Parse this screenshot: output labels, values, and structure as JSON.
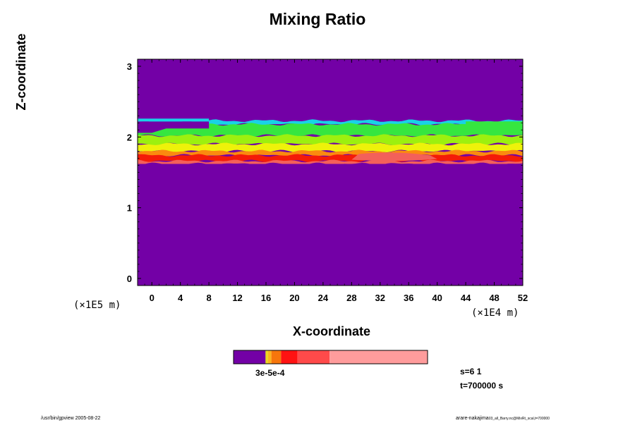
{
  "chart_data": {
    "type": "heatmap",
    "title": "Mixing Ratio",
    "xlabel": "X-coordinate",
    "ylabel": "Z-coordinate",
    "x_unit": "(×1E4 m)",
    "y_unit": "(×1E5 m)",
    "xlim": [
      -2,
      52
    ],
    "ylim": [
      -0.1,
      3.1
    ],
    "x_ticks": [
      "0",
      "4",
      "8",
      "12",
      "16",
      "20",
      "24",
      "28",
      "32",
      "36",
      "40",
      "44",
      "48",
      "52"
    ],
    "y_ticks": [
      "0",
      "1",
      "2",
      "3"
    ],
    "background_color": "#7300a6",
    "bands": [
      {
        "name": "cyan edge",
        "color": "#19d2e6",
        "z_range": [
          2.18,
          2.23
        ]
      },
      {
        "name": "green",
        "color": "#36e640",
        "z_range": [
          2.02,
          2.18
        ]
      },
      {
        "name": "yellow-green",
        "color": "#9df00f",
        "z_range": [
          1.9,
          2.02
        ]
      },
      {
        "name": "yellow",
        "color": "#eef20a",
        "z_range": [
          1.8,
          1.9
        ]
      },
      {
        "name": "orange",
        "color": "#fb8a0f",
        "z_range": [
          1.74,
          1.8
        ]
      },
      {
        "name": "red",
        "color": "#f41b08",
        "z_range": [
          1.66,
          1.74
        ]
      },
      {
        "name": "salmon",
        "color": "#f3605a",
        "z_range": [
          1.62,
          1.66
        ]
      }
    ],
    "colorbar": {
      "label": "3e-5e-4",
      "segments": [
        {
          "color": "#7300a6",
          "fraction": 0.165
        },
        {
          "color": "#e8d81a",
          "fraction": 0.012
        },
        {
          "color": "#fcb41e",
          "fraction": 0.018
        },
        {
          "color": "#f7760c",
          "fraction": 0.05
        },
        {
          "color": "#ff1212",
          "fraction": 0.085
        },
        {
          "color": "#ff4a4a",
          "fraction": 0.165
        },
        {
          "color": "#ff9c9c",
          "fraction": 0.505
        }
      ]
    }
  },
  "info": {
    "s_line": "s=6 1",
    "t_line": "t=700000 s"
  },
  "footer": {
    "left": "/usr/bin/gpview 2005-08-22",
    "right_main": "arare-nakajima",
    "right_small": "03_all_Barry.nc@MixRt_scal,t=700000"
  }
}
